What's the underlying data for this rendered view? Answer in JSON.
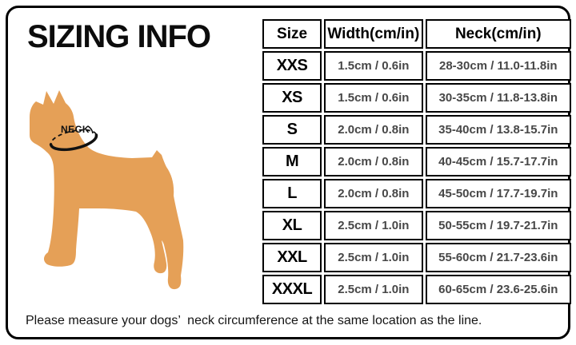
{
  "card": {
    "title": "SIZING INFO",
    "footer_note": "Please measure your dogs’  neck circumference at the same location as the line."
  },
  "diagram": {
    "dog_label": "NECK",
    "dog_color": "#E5A057",
    "collar_color": "#111111"
  },
  "table": {
    "headers": [
      "Size",
      "Width(cm/in)",
      "Neck(cm/in)"
    ],
    "rows": [
      {
        "size": "XXS",
        "width": "1.5cm / 0.6in",
        "neck": "28-30cm / 11.0-11.8in"
      },
      {
        "size": "XS",
        "width": "1.5cm / 0.6in",
        "neck": "30-35cm / 11.8-13.8in"
      },
      {
        "size": "S",
        "width": "2.0cm / 0.8in",
        "neck": "35-40cm / 13.8-15.7in"
      },
      {
        "size": "M",
        "width": "2.0cm / 0.8in",
        "neck": "40-45cm / 15.7-17.7in"
      },
      {
        "size": "L",
        "width": "2.0cm / 0.8in",
        "neck": "45-50cm / 17.7-19.7in"
      },
      {
        "size": "XL",
        "width": "2.5cm / 1.0in",
        "neck": "50-55cm / 19.7-21.7in"
      },
      {
        "size": "XXL",
        "width": "2.5cm / 1.0in",
        "neck": "55-60cm / 21.7-23.6in"
      },
      {
        "size": "XXXL",
        "width": "2.5cm / 1.0in",
        "neck": "60-65cm / 23.6-25.6in"
      }
    ]
  }
}
